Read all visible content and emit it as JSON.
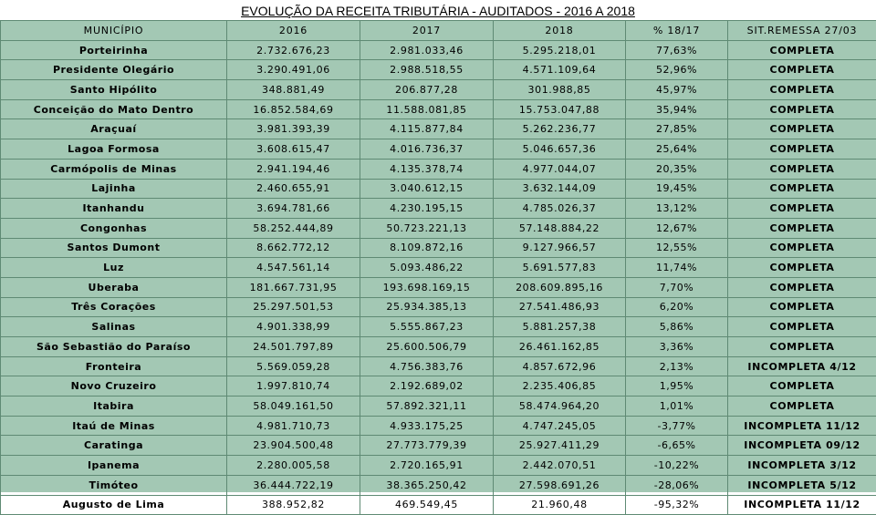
{
  "title": "EVOLUÇÃO DA RECEITA TRIBUTÁRIA - AUDITADOS - 2016 A 2018",
  "headers": [
    "MUNICÍPIO",
    "2016",
    "2017",
    "2018",
    "% 18/17",
    "SIT.REMESSA 27/03"
  ],
  "rows": [
    [
      "Porteirinha",
      "2.732.676,23",
      "2.981.033,46",
      "5.295.218,01",
      "77,63%",
      "COMPLETA"
    ],
    [
      "Presidente Olegário",
      "3.290.491,06",
      "2.988.518,55",
      "4.571.109,64",
      "52,96%",
      "COMPLETA"
    ],
    [
      "Santo Hipólito",
      "348.881,49",
      "206.877,28",
      "301.988,85",
      "45,97%",
      "COMPLETA"
    ],
    [
      "Conceição do Mato Dentro",
      "16.852.584,69",
      "11.588.081,85",
      "15.753.047,88",
      "35,94%",
      "COMPLETA"
    ],
    [
      "Araçuaí",
      "3.981.393,39",
      "4.115.877,84",
      "5.262.236,77",
      "27,85%",
      "COMPLETA"
    ],
    [
      "Lagoa Formosa",
      "3.608.615,47",
      "4.016.736,37",
      "5.046.657,36",
      "25,64%",
      "COMPLETA"
    ],
    [
      "Carmópolis de Minas",
      "2.941.194,46",
      "4.135.378,74",
      "4.977.044,07",
      "20,35%",
      "COMPLETA"
    ],
    [
      "Lajinha",
      "2.460.655,91",
      "3.040.612,15",
      "3.632.144,09",
      "19,45%",
      "COMPLETA"
    ],
    [
      "Itanhandu",
      "3.694.781,66",
      "4.230.195,15",
      "4.785.026,37",
      "13,12%",
      "COMPLETA"
    ],
    [
      "Congonhas",
      "58.252.444,89",
      "50.723.221,13",
      "57.148.884,22",
      "12,67%",
      "COMPLETA"
    ],
    [
      "Santos Dumont",
      "8.662.772,12",
      "8.109.872,16",
      "9.127.966,57",
      "12,55%",
      "COMPLETA"
    ],
    [
      "Luz",
      "4.547.561,14",
      "5.093.486,22",
      "5.691.577,83",
      "11,74%",
      "COMPLETA"
    ],
    [
      "Uberaba",
      "181.667.731,95",
      "193.698.169,15",
      "208.609.895,16",
      "7,70%",
      "COMPLETA"
    ],
    [
      "Três Corações",
      "25.297.501,53",
      "25.934.385,13",
      "27.541.486,93",
      "6,20%",
      "COMPLETA"
    ],
    [
      "Salinas",
      "4.901.338,99",
      "5.555.867,23",
      "5.881.257,38",
      "5,86%",
      "COMPLETA"
    ],
    [
      "São Sebastião do Paraíso",
      "24.501.797,89",
      "25.600.506,79",
      "26.461.162,85",
      "3,36%",
      "COMPLETA"
    ],
    [
      "Fronteira",
      "5.569.059,28",
      "4.756.383,76",
      "4.857.672,96",
      "2,13%",
      "INCOMPLETA 4/12"
    ],
    [
      "Novo Cruzeiro",
      "1.997.810,74",
      "2.192.689,02",
      "2.235.406,85",
      "1,95%",
      "COMPLETA"
    ],
    [
      "Itabira",
      "58.049.161,50",
      "57.892.321,11",
      "58.474.964,20",
      "1,01%",
      "COMPLETA"
    ],
    [
      "Itaú de Minas",
      "4.981.710,73",
      "4.933.175,25",
      "4.747.245,05",
      "-3,77%",
      "INCOMPLETA 11/12"
    ],
    [
      "Caratinga",
      "23.904.500,48",
      "27.773.779,39",
      "25.927.411,29",
      "-6,65%",
      "INCOMPLETA 09/12"
    ],
    [
      "Ipanema",
      "2.280.005,58",
      "2.720.165,91",
      "2.442.070,51",
      "-10,22%",
      "INCOMPLETA 3/12"
    ],
    [
      "Timóteo",
      "36.444.722,19",
      "38.365.250,42",
      "27.598.691,26",
      "-28,06%",
      "INCOMPLETA 5/12"
    ],
    [
      "Augusto de Lima",
      "388.952,82",
      "469.549,45",
      "21.960,48",
      "-95,32%",
      "INCOMPLETA 11/12"
    ]
  ]
}
